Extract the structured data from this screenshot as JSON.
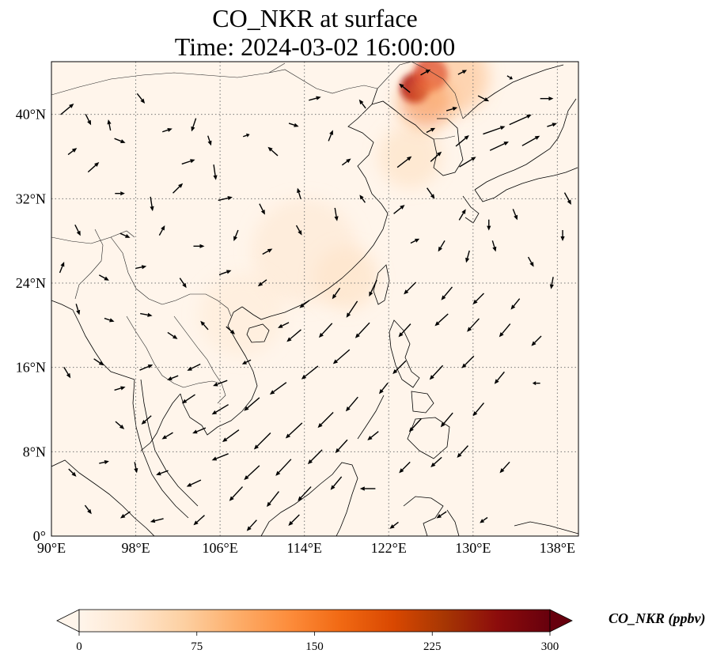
{
  "title": "CO_NKR at surface",
  "subtitle": "Time: 2024-03-02 16:00:00",
  "map": {
    "lon_range": [
      90,
      140
    ],
    "lat_range": [
      0,
      45
    ],
    "lon_ticks": [
      90,
      98,
      106,
      114,
      122,
      130,
      138
    ],
    "lat_ticks": [
      0,
      8,
      16,
      24,
      32,
      40
    ],
    "lon_labels": [
      "90°E",
      "98°E",
      "106°E",
      "114°E",
      "122°E",
      "130°E",
      "138°E"
    ],
    "lat_labels": [
      "0°",
      "8°N",
      "16°N",
      "24°N",
      "32°N",
      "40°N"
    ],
    "grid": "dotted",
    "background_color": "#fff5eb",
    "hotspots": [
      {
        "lon": 124.5,
        "lat": 42.5,
        "r_deg": 1.4,
        "color": "#a50f15",
        "opacity": 0.9
      },
      {
        "lon": 126.0,
        "lat": 43.8,
        "r_deg": 1.6,
        "color": "#cb181d",
        "opacity": 0.8
      },
      {
        "lon": 125.5,
        "lat": 41.2,
        "r_deg": 2.5,
        "color": "#f16913",
        "opacity": 0.45
      },
      {
        "lon": 128.0,
        "lat": 43.5,
        "r_deg": 3.5,
        "color": "#fdae6b",
        "opacity": 0.45
      },
      {
        "lon": 124.0,
        "lat": 36.0,
        "r_deg": 3.0,
        "color": "#fdd0a2",
        "opacity": 0.35
      },
      {
        "lon": 118.0,
        "lat": 24.5,
        "r_deg": 3.0,
        "color": "#fdd0a2",
        "opacity": 0.35
      },
      {
        "lon": 114.0,
        "lat": 27.0,
        "r_deg": 5.0,
        "color": "#fee6ce",
        "opacity": 0.5
      },
      {
        "lon": 108.0,
        "lat": 21.0,
        "r_deg": 4.0,
        "color": "#fee6ce",
        "opacity": 0.4
      }
    ],
    "wind_vectors": [
      {
        "lon": 91.5,
        "lat": 40.5,
        "u": 1.2,
        "v": 1.0
      },
      {
        "lon": 92.0,
        "lat": 36.5,
        "u": 0.8,
        "v": 0.6
      },
      {
        "lon": 93.5,
        "lat": 39.5,
        "u": 0.5,
        "v": -1.0
      },
      {
        "lon": 95.5,
        "lat": 39.0,
        "u": -0.2,
        "v": 1.0
      },
      {
        "lon": 94.0,
        "lat": 35.0,
        "u": 1.0,
        "v": 0.9
      },
      {
        "lon": 96.5,
        "lat": 37.5,
        "u": 1.0,
        "v": -0.4
      },
      {
        "lon": 98.5,
        "lat": 41.5,
        "u": 0.7,
        "v": -0.9
      },
      {
        "lon": 101.0,
        "lat": 38.5,
        "u": 0.9,
        "v": 0.3
      },
      {
        "lon": 103.5,
        "lat": 39.0,
        "u": -0.4,
        "v": -1.2
      },
      {
        "lon": 105.0,
        "lat": 37.5,
        "u": 0.3,
        "v": -0.9
      },
      {
        "lon": 103.0,
        "lat": 35.5,
        "u": 1.2,
        "v": 0.4
      },
      {
        "lon": 105.5,
        "lat": 34.5,
        "u": 0.2,
        "v": -1.4
      },
      {
        "lon": 108.5,
        "lat": 38.0,
        "u": 0.6,
        "v": 0.2
      },
      {
        "lon": 111.0,
        "lat": 36.5,
        "u": -0.9,
        "v": 0.8
      },
      {
        "lon": 113.0,
        "lat": 39.0,
        "u": 0.9,
        "v": -0.3
      },
      {
        "lon": 116.5,
        "lat": 38.0,
        "u": 0.4,
        "v": 1.0
      },
      {
        "lon": 118.0,
        "lat": 35.5,
        "u": 0.8,
        "v": 0.6
      },
      {
        "lon": 119.5,
        "lat": 41.0,
        "u": -0.6,
        "v": 0.8
      },
      {
        "lon": 115.0,
        "lat": 41.5,
        "u": 1.1,
        "v": 0.3
      },
      {
        "lon": 96.5,
        "lat": 32.5,
        "u": 0.9,
        "v": 0.0
      },
      {
        "lon": 99.5,
        "lat": 31.5,
        "u": 0.2,
        "v": -1.3
      },
      {
        "lon": 102.0,
        "lat": 33.0,
        "u": 0.9,
        "v": 0.9
      },
      {
        "lon": 106.5,
        "lat": 32.0,
        "u": 1.3,
        "v": 0.3
      },
      {
        "lon": 110.0,
        "lat": 31.0,
        "u": 0.5,
        "v": -1.0
      },
      {
        "lon": 113.5,
        "lat": 32.5,
        "u": -0.3,
        "v": 1.0
      },
      {
        "lon": 117.0,
        "lat": 30.5,
        "u": 0.2,
        "v": -1.2
      },
      {
        "lon": 119.5,
        "lat": 32.0,
        "u": -0.5,
        "v": 0.7
      },
      {
        "lon": 92.5,
        "lat": 29.0,
        "u": 0.5,
        "v": -1.0
      },
      {
        "lon": 97.0,
        "lat": 28.5,
        "u": 0.9,
        "v": -0.4
      },
      {
        "lon": 100.5,
        "lat": 29.0,
        "u": 0.5,
        "v": 0.9
      },
      {
        "lon": 104.0,
        "lat": 27.5,
        "u": 1.0,
        "v": 0.0
      },
      {
        "lon": 107.5,
        "lat": 28.5,
        "u": -0.4,
        "v": -1.0
      },
      {
        "lon": 110.5,
        "lat": 27.0,
        "u": 0.9,
        "v": 0.5
      },
      {
        "lon": 113.5,
        "lat": 29.0,
        "u": 0.5,
        "v": -0.9
      },
      {
        "lon": 91.0,
        "lat": 25.5,
        "u": 0.4,
        "v": 1.0
      },
      {
        "lon": 95.0,
        "lat": 24.5,
        "u": 0.9,
        "v": -0.5
      },
      {
        "lon": 98.5,
        "lat": 25.5,
        "u": 1.0,
        "v": 0.2
      },
      {
        "lon": 102.5,
        "lat": 24.0,
        "u": 0.6,
        "v": -0.9
      },
      {
        "lon": 106.5,
        "lat": 25.0,
        "u": 1.1,
        "v": 0.4
      },
      {
        "lon": 110.0,
        "lat": 24.0,
        "u": -0.8,
        "v": -0.6
      },
      {
        "lon": 92.5,
        "lat": 21.5,
        "u": 0.3,
        "v": -1.0
      },
      {
        "lon": 95.5,
        "lat": 20.5,
        "u": 0.9,
        "v": -0.3
      },
      {
        "lon": 99.0,
        "lat": 21.0,
        "u": 1.1,
        "v": -0.2
      },
      {
        "lon": 101.5,
        "lat": 19.0,
        "u": 0.9,
        "v": -0.6
      },
      {
        "lon": 104.5,
        "lat": 20.0,
        "u": -0.7,
        "v": 0.8
      },
      {
        "lon": 107.0,
        "lat": 19.5,
        "u": 0.8,
        "v": -0.7
      },
      {
        "lon": 112.0,
        "lat": 20.0,
        "u": -1.0,
        "v": -0.5
      },
      {
        "lon": 91.5,
        "lat": 15.5,
        "u": 0.6,
        "v": -1.0
      },
      {
        "lon": 94.5,
        "lat": 16.5,
        "u": 0.9,
        "v": -0.6
      },
      {
        "lon": 96.5,
        "lat": 14.0,
        "u": 1.0,
        "v": 0.3
      },
      {
        "lon": 99.0,
        "lat": 16.0,
        "u": 1.2,
        "v": 0.5
      },
      {
        "lon": 101.5,
        "lat": 15.0,
        "u": -1.0,
        "v": -0.4
      },
      {
        "lon": 103.5,
        "lat": 16.0,
        "u": -1.2,
        "v": -0.6
      },
      {
        "lon": 106.0,
        "lat": 14.5,
        "u": -1.3,
        "v": -0.5
      },
      {
        "lon": 108.5,
        "lat": 16.5,
        "u": -0.8,
        "v": -0.4
      },
      {
        "lon": 103.0,
        "lat": 13.0,
        "u": -1.2,
        "v": -0.8
      },
      {
        "lon": 106.0,
        "lat": 12.0,
        "u": -1.5,
        "v": -0.9
      },
      {
        "lon": 109.0,
        "lat": 12.5,
        "u": -1.4,
        "v": -1.2
      },
      {
        "lon": 111.5,
        "lat": 14.0,
        "u": -1.5,
        "v": -1.1
      },
      {
        "lon": 114.5,
        "lat": 15.5,
        "u": -1.5,
        "v": -1.2
      },
      {
        "lon": 117.5,
        "lat": 17.0,
        "u": -1.5,
        "v": -1.3
      },
      {
        "lon": 119.5,
        "lat": 19.5,
        "u": -1.3,
        "v": -1.4
      },
      {
        "lon": 113.0,
        "lat": 19.0,
        "u": -1.3,
        "v": -1.1
      },
      {
        "lon": 116.0,
        "lat": 19.5,
        "u": -1.2,
        "v": -1.3
      },
      {
        "lon": 118.5,
        "lat": 21.5,
        "u": -1.0,
        "v": -1.5
      },
      {
        "lon": 120.5,
        "lat": 23.5,
        "u": -0.7,
        "v": -1.5
      },
      {
        "lon": 114.0,
        "lat": 22.0,
        "u": -0.9,
        "v": -0.7
      },
      {
        "lon": 117.0,
        "lat": 23.0,
        "u": -0.7,
        "v": -1.0
      },
      {
        "lon": 96.5,
        "lat": 10.5,
        "u": 0.8,
        "v": -0.7
      },
      {
        "lon": 99.0,
        "lat": 11.0,
        "u": -0.9,
        "v": -0.8
      },
      {
        "lon": 101.0,
        "lat": 9.5,
        "u": -1.0,
        "v": -0.6
      },
      {
        "lon": 104.0,
        "lat": 10.0,
        "u": -1.2,
        "v": -0.5
      },
      {
        "lon": 107.0,
        "lat": 9.5,
        "u": -1.5,
        "v": -1.1
      },
      {
        "lon": 110.0,
        "lat": 9.0,
        "u": -1.5,
        "v": -1.5
      },
      {
        "lon": 113.0,
        "lat": 10.0,
        "u": -1.5,
        "v": -1.4
      },
      {
        "lon": 116.0,
        "lat": 11.0,
        "u": -1.4,
        "v": -1.4
      },
      {
        "lon": 118.5,
        "lat": 12.5,
        "u": -1.1,
        "v": -1.3
      },
      {
        "lon": 121.5,
        "lat": 14.0,
        "u": -0.8,
        "v": -1.0
      },
      {
        "lon": 106.0,
        "lat": 7.5,
        "u": -1.5,
        "v": -0.6
      },
      {
        "lon": 109.0,
        "lat": 6.0,
        "u": -1.4,
        "v": -1.3
      },
      {
        "lon": 112.0,
        "lat": 6.5,
        "u": -1.4,
        "v": -1.5
      },
      {
        "lon": 115.0,
        "lat": 7.5,
        "u": -1.3,
        "v": -1.3
      },
      {
        "lon": 117.5,
        "lat": 8.5,
        "u": -1.1,
        "v": -1.2
      },
      {
        "lon": 120.5,
        "lat": 9.5,
        "u": -1.0,
        "v": -0.8
      },
      {
        "lon": 92.0,
        "lat": 6.0,
        "u": 0.7,
        "v": -0.7
      },
      {
        "lon": 95.0,
        "lat": 7.0,
        "u": 0.9,
        "v": 0.2
      },
      {
        "lon": 98.0,
        "lat": 6.5,
        "u": 0.2,
        "v": -1.0
      },
      {
        "lon": 100.5,
        "lat": 6.0,
        "u": -1.1,
        "v": -0.4
      },
      {
        "lon": 103.5,
        "lat": 5.0,
        "u": -1.3,
        "v": -0.6
      },
      {
        "lon": 107.5,
        "lat": 4.0,
        "u": -1.2,
        "v": -1.3
      },
      {
        "lon": 111.0,
        "lat": 3.5,
        "u": -1.1,
        "v": -1.4
      },
      {
        "lon": 114.0,
        "lat": 4.0,
        "u": -1.2,
        "v": -1.3
      },
      {
        "lon": 117.0,
        "lat": 5.0,
        "u": -1.0,
        "v": -1.2
      },
      {
        "lon": 120.0,
        "lat": 4.5,
        "u": -1.4,
        "v": 0.0
      },
      {
        "lon": 93.5,
        "lat": 2.5,
        "u": 0.6,
        "v": -0.8
      },
      {
        "lon": 97.0,
        "lat": 2.0,
        "u": -0.9,
        "v": -0.6
      },
      {
        "lon": 100.0,
        "lat": 1.5,
        "u": -1.2,
        "v": -0.3
      },
      {
        "lon": 104.0,
        "lat": 1.5,
        "u": -1.0,
        "v": -0.9
      },
      {
        "lon": 109.0,
        "lat": 1.0,
        "u": -0.9,
        "v": -1.0
      },
      {
        "lon": 113.0,
        "lat": 1.5,
        "u": -1.0,
        "v": -1.0
      },
      {
        "lon": 122.5,
        "lat": 1.0,
        "u": -0.8,
        "v": -0.6
      },
      {
        "lon": 127.0,
        "lat": 2.0,
        "u": -0.9,
        "v": -0.6
      },
      {
        "lon": 131.0,
        "lat": 1.5,
        "u": -0.7,
        "v": -0.5
      },
      {
        "lon": 123.5,
        "lat": 6.5,
        "u": -1.0,
        "v": -1.0
      },
      {
        "lon": 126.5,
        "lat": 7.0,
        "u": -1.0,
        "v": -0.9
      },
      {
        "lon": 129.0,
        "lat": 8.0,
        "u": -1.0,
        "v": -1.1
      },
      {
        "lon": 133.0,
        "lat": 6.5,
        "u": -0.9,
        "v": -1.0
      },
      {
        "lon": 124.5,
        "lat": 10.5,
        "u": -1.1,
        "v": -1.2
      },
      {
        "lon": 127.5,
        "lat": 11.0,
        "u": -1.1,
        "v": -1.3
      },
      {
        "lon": 130.5,
        "lat": 12.0,
        "u": -1.0,
        "v": -1.2
      },
      {
        "lon": 123.0,
        "lat": 16.0,
        "u": -1.2,
        "v": -1.2
      },
      {
        "lon": 126.5,
        "lat": 15.5,
        "u": -1.2,
        "v": -1.3
      },
      {
        "lon": 129.5,
        "lat": 16.5,
        "u": -1.1,
        "v": -1.1
      },
      {
        "lon": 132.5,
        "lat": 15.0,
        "u": -0.9,
        "v": -1.1
      },
      {
        "lon": 136.0,
        "lat": 14.5,
        "u": -0.7,
        "v": 0.0
      },
      {
        "lon": 123.5,
        "lat": 19.5,
        "u": -1.1,
        "v": -1.2
      },
      {
        "lon": 127.0,
        "lat": 20.5,
        "u": -1.2,
        "v": -1.1
      },
      {
        "lon": 130.0,
        "lat": 20.0,
        "u": -1.1,
        "v": -1.2
      },
      {
        "lon": 133.0,
        "lat": 19.5,
        "u": -1.0,
        "v": -1.2
      },
      {
        "lon": 136.0,
        "lat": 18.5,
        "u": -0.9,
        "v": -0.9
      },
      {
        "lon": 124.0,
        "lat": 23.5,
        "u": -1.1,
        "v": -1.1
      },
      {
        "lon": 127.5,
        "lat": 23.0,
        "u": -1.0,
        "v": -1.2
      },
      {
        "lon": 130.5,
        "lat": 22.5,
        "u": -1.0,
        "v": -1.0
      },
      {
        "lon": 134.0,
        "lat": 22.0,
        "u": -0.8,
        "v": -1.0
      },
      {
        "lon": 137.5,
        "lat": 24.0,
        "u": -0.2,
        "v": -1.1
      },
      {
        "lon": 124.5,
        "lat": 28.0,
        "u": 0.8,
        "v": 0.4
      },
      {
        "lon": 127.0,
        "lat": 27.5,
        "u": -0.6,
        "v": -1.0
      },
      {
        "lon": 129.5,
        "lat": 26.5,
        "u": -0.3,
        "v": -1.1
      },
      {
        "lon": 132.0,
        "lat": 27.5,
        "u": 0.3,
        "v": -1.0
      },
      {
        "lon": 135.5,
        "lat": 26.0,
        "u": 0.5,
        "v": -0.9
      },
      {
        "lon": 138.5,
        "lat": 28.5,
        "u": 0.0,
        "v": -1.0
      },
      {
        "lon": 123.0,
        "lat": 31.0,
        "u": 1.0,
        "v": 0.8
      },
      {
        "lon": 126.0,
        "lat": 32.5,
        "u": 0.7,
        "v": -1.0
      },
      {
        "lon": 129.0,
        "lat": 30.5,
        "u": 0.6,
        "v": 1.0
      },
      {
        "lon": 131.5,
        "lat": 29.5,
        "u": 0.0,
        "v": -1.0
      },
      {
        "lon": 134.0,
        "lat": 30.5,
        "u": 0.4,
        "v": -1.0
      },
      {
        "lon": 139.0,
        "lat": 32.0,
        "u": 0.6,
        "v": -1.1
      },
      {
        "lon": 123.5,
        "lat": 35.5,
        "u": 1.3,
        "v": 1.0
      },
      {
        "lon": 126.5,
        "lat": 36.0,
        "u": 1.0,
        "v": 0.9
      },
      {
        "lon": 129.5,
        "lat": 35.5,
        "u": 1.5,
        "v": 0.9
      },
      {
        "lon": 132.5,
        "lat": 37.0,
        "u": 1.7,
        "v": 0.8
      },
      {
        "lon": 135.5,
        "lat": 37.5,
        "u": 1.6,
        "v": 0.9
      },
      {
        "lon": 129.0,
        "lat": 37.5,
        "u": 1.2,
        "v": 1.0
      },
      {
        "lon": 132.0,
        "lat": 38.5,
        "u": 2.0,
        "v": 0.7
      },
      {
        "lon": 134.5,
        "lat": 39.5,
        "u": 2.0,
        "v": 0.9
      },
      {
        "lon": 137.5,
        "lat": 39.0,
        "u": 0.9,
        "v": 0.3
      },
      {
        "lon": 137.0,
        "lat": 41.5,
        "u": 1.2,
        "v": 0.0
      },
      {
        "lon": 131.0,
        "lat": 41.5,
        "u": 1.0,
        "v": -0.5
      },
      {
        "lon": 128.0,
        "lat": 40.5,
        "u": 1.0,
        "v": 0.3
      },
      {
        "lon": 126.0,
        "lat": 38.5,
        "u": 0.8,
        "v": 0.4
      },
      {
        "lon": 123.5,
        "lat": 42.5,
        "u": -1.0,
        "v": 0.8
      },
      {
        "lon": 125.5,
        "lat": 44.0,
        "u": 0.9,
        "v": 0.5
      },
      {
        "lon": 129.0,
        "lat": 44.0,
        "u": 0.8,
        "v": 0.4
      },
      {
        "lon": 133.5,
        "lat": 43.5,
        "u": 0.5,
        "v": -0.3
      }
    ]
  },
  "colorbar": {
    "label": "CO_NKR (ppbv)",
    "min": 0,
    "max": 300,
    "ticks": [
      0,
      75,
      150,
      225,
      300
    ],
    "tick_labels": [
      "0",
      "75",
      "150",
      "225",
      "300"
    ],
    "colors": [
      "#fff5eb",
      "#fee6ce",
      "#fdd0a2",
      "#fdae6b",
      "#fd8d3c",
      "#f16913",
      "#d94801",
      "#a63603",
      "#8c0c0c",
      "#67000d"
    ],
    "extend": "both"
  }
}
